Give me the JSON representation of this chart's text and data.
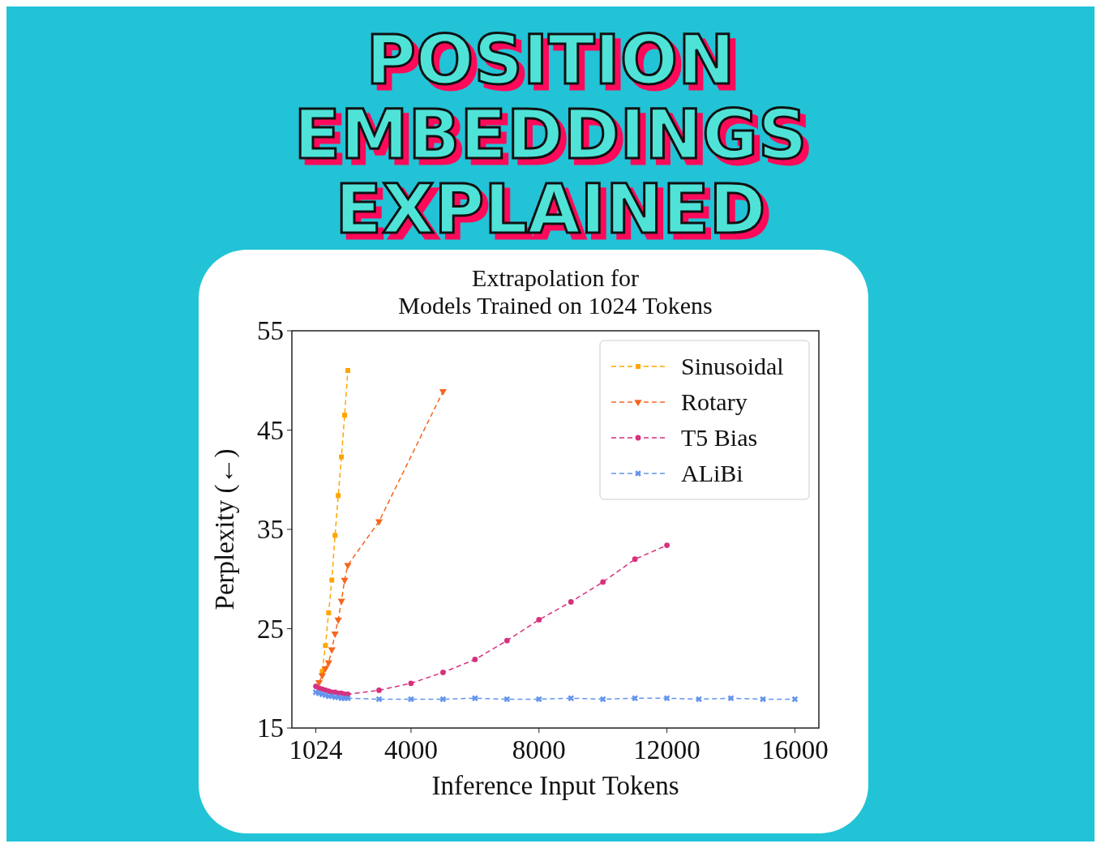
{
  "chart_data": {
    "type": "line",
    "title": "POSITION\nEMBEDDINGS\nEXPLAINED",
    "subtitle": "Extrapolation for\nModels Trained on 1024 Tokens",
    "xlabel": "Inference Input Tokens",
    "ylabel": "Perplexity (←)",
    "xlim": [
      275,
      16749
    ],
    "ylim": [
      15,
      55
    ],
    "xticks": [
      1024,
      4000,
      8000,
      12000,
      16000
    ],
    "yticks": [
      15,
      25,
      35,
      45,
      55
    ],
    "legend": "top right",
    "line_style": "dashed",
    "series": [
      {
        "name": "Sinusoidal",
        "color": "#ffa500",
        "marker": "square",
        "x": [
          1224,
          1324,
          1424,
          1524,
          1624,
          1724,
          1824,
          1924,
          2024
        ],
        "values": [
          20.7,
          23.3,
          26.6,
          29.9,
          34.4,
          38.4,
          42.3,
          46.5,
          51
        ]
      },
      {
        "name": "Rotary",
        "color": "#f5651d",
        "marker": "triangle",
        "x": [
          1124,
          1224,
          1324,
          1424,
          1524,
          1624,
          1724,
          1824,
          1924,
          2024,
          3000,
          5000
        ],
        "values": [
          19.6,
          20.3,
          21,
          21.6,
          22.9,
          24.5,
          25.9,
          27.8,
          29.9,
          31.4,
          35.8,
          48.9
        ]
      },
      {
        "name": "T5 Bias",
        "color": "#d6317f",
        "marker": "circle",
        "x": [
          1024,
          1124,
          1224,
          1324,
          1424,
          1524,
          1624,
          1724,
          1824,
          1924,
          2024,
          3000,
          4000,
          5000,
          6000,
          7000,
          8000,
          9000,
          10000,
          11000,
          12000
        ],
        "values": [
          19.2,
          19,
          18.9,
          18.8,
          18.7,
          18.6,
          18.6,
          18.5,
          18.5,
          18.4,
          18.4,
          18.8,
          19.5,
          20.6,
          21.9,
          23.8,
          25.9,
          27.7,
          29.7,
          32,
          33.4
        ]
      },
      {
        "name": "ALiBi",
        "color": "#6495ed",
        "marker": "cross",
        "x": [
          1024,
          1124,
          1224,
          1324,
          1424,
          1524,
          1624,
          1724,
          1824,
          1924,
          2024,
          3000,
          4000,
          5000,
          6000,
          7000,
          8000,
          9000,
          10000,
          11000,
          12000,
          13000,
          14000,
          15000,
          16000
        ],
        "values": [
          18.6,
          18.5,
          18.4,
          18.3,
          18.2,
          18.2,
          18.1,
          18.1,
          18,
          18,
          18,
          17.9,
          17.9,
          17.9,
          18,
          17.9,
          17.9,
          18,
          17.9,
          18,
          18,
          17.9,
          18,
          17.9,
          17.9
        ]
      }
    ]
  }
}
